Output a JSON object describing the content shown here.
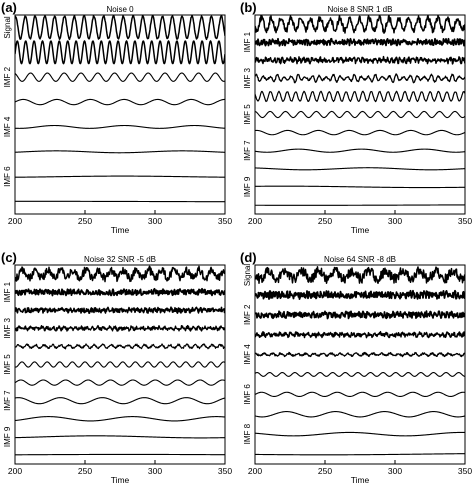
{
  "chart_data": [
    {
      "type": "line",
      "panel_label": "(a)",
      "title": "Noise 0",
      "xlabel": "Time",
      "xlim": [
        200,
        350
      ],
      "xticks": [
        200,
        250,
        300,
        350
      ],
      "row_labels": [
        "Signal",
        "",
        "IMF 2",
        "",
        "IMF 4",
        "",
        "IMF 6",
        ""
      ],
      "series": [
        {
          "amp": 0.95,
          "period": 7,
          "noise": 0.06,
          "stroke": 1.5
        },
        {
          "amp": 0.95,
          "period": 6,
          "noise": 0.0,
          "stroke": 1.5
        },
        {
          "amp": 0.35,
          "period": 12,
          "noise": 0.0,
          "stroke": 1.1
        },
        {
          "amp": 0.22,
          "period": 24,
          "noise": 0.0,
          "stroke": 1.1
        },
        {
          "amp": 0.12,
          "period": 50,
          "noise": 0.0,
          "stroke": 1.1
        },
        {
          "amp": 0.08,
          "period": 90,
          "noise": 0.0,
          "stroke": 1.1
        },
        {
          "amp": 0.05,
          "period": 180,
          "noise": 0.0,
          "stroke": 1.1
        },
        {
          "amp": 0.02,
          "period": 400,
          "noise": 0.0,
          "stroke": 1.1
        }
      ]
    },
    {
      "type": "line",
      "panel_label": "(b)",
      "title": "Noise 8   SNR 1 dB",
      "xlabel": "Time",
      "xlim": [
        200,
        350
      ],
      "xticks": [
        200,
        250,
        300,
        350
      ],
      "row_labels": [
        "",
        "IMF 1",
        "",
        "IMF 3",
        "",
        "IMF 5",
        "",
        "IMF 7",
        "",
        "IMF 9",
        ""
      ],
      "series": [
        {
          "amp": 0.7,
          "period": 7,
          "noise": 0.35,
          "stroke": 1.5
        },
        {
          "amp": 0.12,
          "period": 2,
          "noise": 0.3,
          "stroke": 1.8
        },
        {
          "amp": 0.18,
          "period": 3,
          "noise": 0.25,
          "stroke": 1.5
        },
        {
          "amp": 0.45,
          "period": 5,
          "noise": 0.1,
          "stroke": 1.3,
          "bursty": true
        },
        {
          "amp": 0.55,
          "period": 6,
          "noise": 0.05,
          "stroke": 1.2
        },
        {
          "amp": 0.35,
          "period": 11,
          "noise": 0.0,
          "stroke": 1.1
        },
        {
          "amp": 0.25,
          "period": 22,
          "noise": 0.0,
          "stroke": 1.1
        },
        {
          "amp": 0.18,
          "period": 45,
          "noise": 0.0,
          "stroke": 1.1
        },
        {
          "amp": 0.12,
          "period": 90,
          "noise": 0.0,
          "stroke": 1.1
        },
        {
          "amp": 0.08,
          "period": 200,
          "noise": 0.0,
          "stroke": 1.1
        },
        {
          "amp": 0.04,
          "period": 400,
          "noise": 0.0,
          "stroke": 1.1
        }
      ]
    },
    {
      "type": "line",
      "panel_label": "(c)",
      "title": "Noise 32   SNR -5 dB",
      "xlabel": "Time",
      "xlim": [
        200,
        350
      ],
      "xticks": [
        200,
        250,
        300,
        350
      ],
      "row_labels": [
        "",
        "IMF 1",
        "",
        "IMF 3",
        "",
        "IMF 5",
        "",
        "IMF 7",
        "",
        "IMF 9",
        ""
      ],
      "series": [
        {
          "amp": 0.45,
          "period": 9,
          "noise": 0.45,
          "stroke": 1.5
        },
        {
          "amp": 0.1,
          "period": 2,
          "noise": 0.3,
          "stroke": 1.8
        },
        {
          "amp": 0.1,
          "period": 3,
          "noise": 0.25,
          "stroke": 1.6
        },
        {
          "amp": 0.12,
          "period": 4,
          "noise": 0.2,
          "stroke": 1.4
        },
        {
          "amp": 0.18,
          "period": 6,
          "noise": 0.12,
          "stroke": 1.2
        },
        {
          "amp": 0.3,
          "period": 9,
          "noise": 0.0,
          "stroke": 1.1
        },
        {
          "amp": 0.3,
          "period": 16,
          "noise": 0.0,
          "stroke": 1.1
        },
        {
          "amp": 0.35,
          "period": 30,
          "noise": 0.0,
          "stroke": 1.1
        },
        {
          "amp": 0.25,
          "period": 60,
          "noise": 0.0,
          "stroke": 1.1
        },
        {
          "amp": 0.12,
          "period": 150,
          "noise": 0.0,
          "stroke": 1.1
        },
        {
          "amp": 0.06,
          "period": 400,
          "noise": 0.0,
          "stroke": 1.1
        }
      ]
    },
    {
      "type": "line",
      "panel_label": "(d)",
      "title": "Noise 64   SNR -8 dB",
      "xlabel": "Time",
      "xlim": [
        200,
        350
      ],
      "xticks": [
        200,
        250,
        300,
        350
      ],
      "row_labels": [
        "Signal",
        "",
        "IMF 2",
        "",
        "IMF 4",
        "",
        "IMF 6",
        "",
        "IMF 8",
        ""
      ],
      "series": [
        {
          "amp": 0.4,
          "period": 12,
          "noise": 0.5,
          "stroke": 1.5
        },
        {
          "amp": 0.1,
          "period": 2,
          "noise": 0.35,
          "stroke": 1.8
        },
        {
          "amp": 0.1,
          "period": 3,
          "noise": 0.3,
          "stroke": 1.7
        },
        {
          "amp": 0.12,
          "period": 4,
          "noise": 0.2,
          "stroke": 1.5
        },
        {
          "amp": 0.12,
          "period": 6,
          "noise": 0.1,
          "stroke": 1.3
        },
        {
          "amp": 0.2,
          "period": 9,
          "noise": 0.0,
          "stroke": 1.1
        },
        {
          "amp": 0.22,
          "period": 18,
          "noise": 0.0,
          "stroke": 1.1
        },
        {
          "amp": 0.28,
          "period": 35,
          "noise": 0.0,
          "stroke": 1.1
        },
        {
          "amp": 0.18,
          "period": 80,
          "noise": 0.0,
          "stroke": 1.1
        },
        {
          "amp": 0.08,
          "period": 300,
          "noise": 0.0,
          "stroke": 1.1
        }
      ]
    }
  ]
}
